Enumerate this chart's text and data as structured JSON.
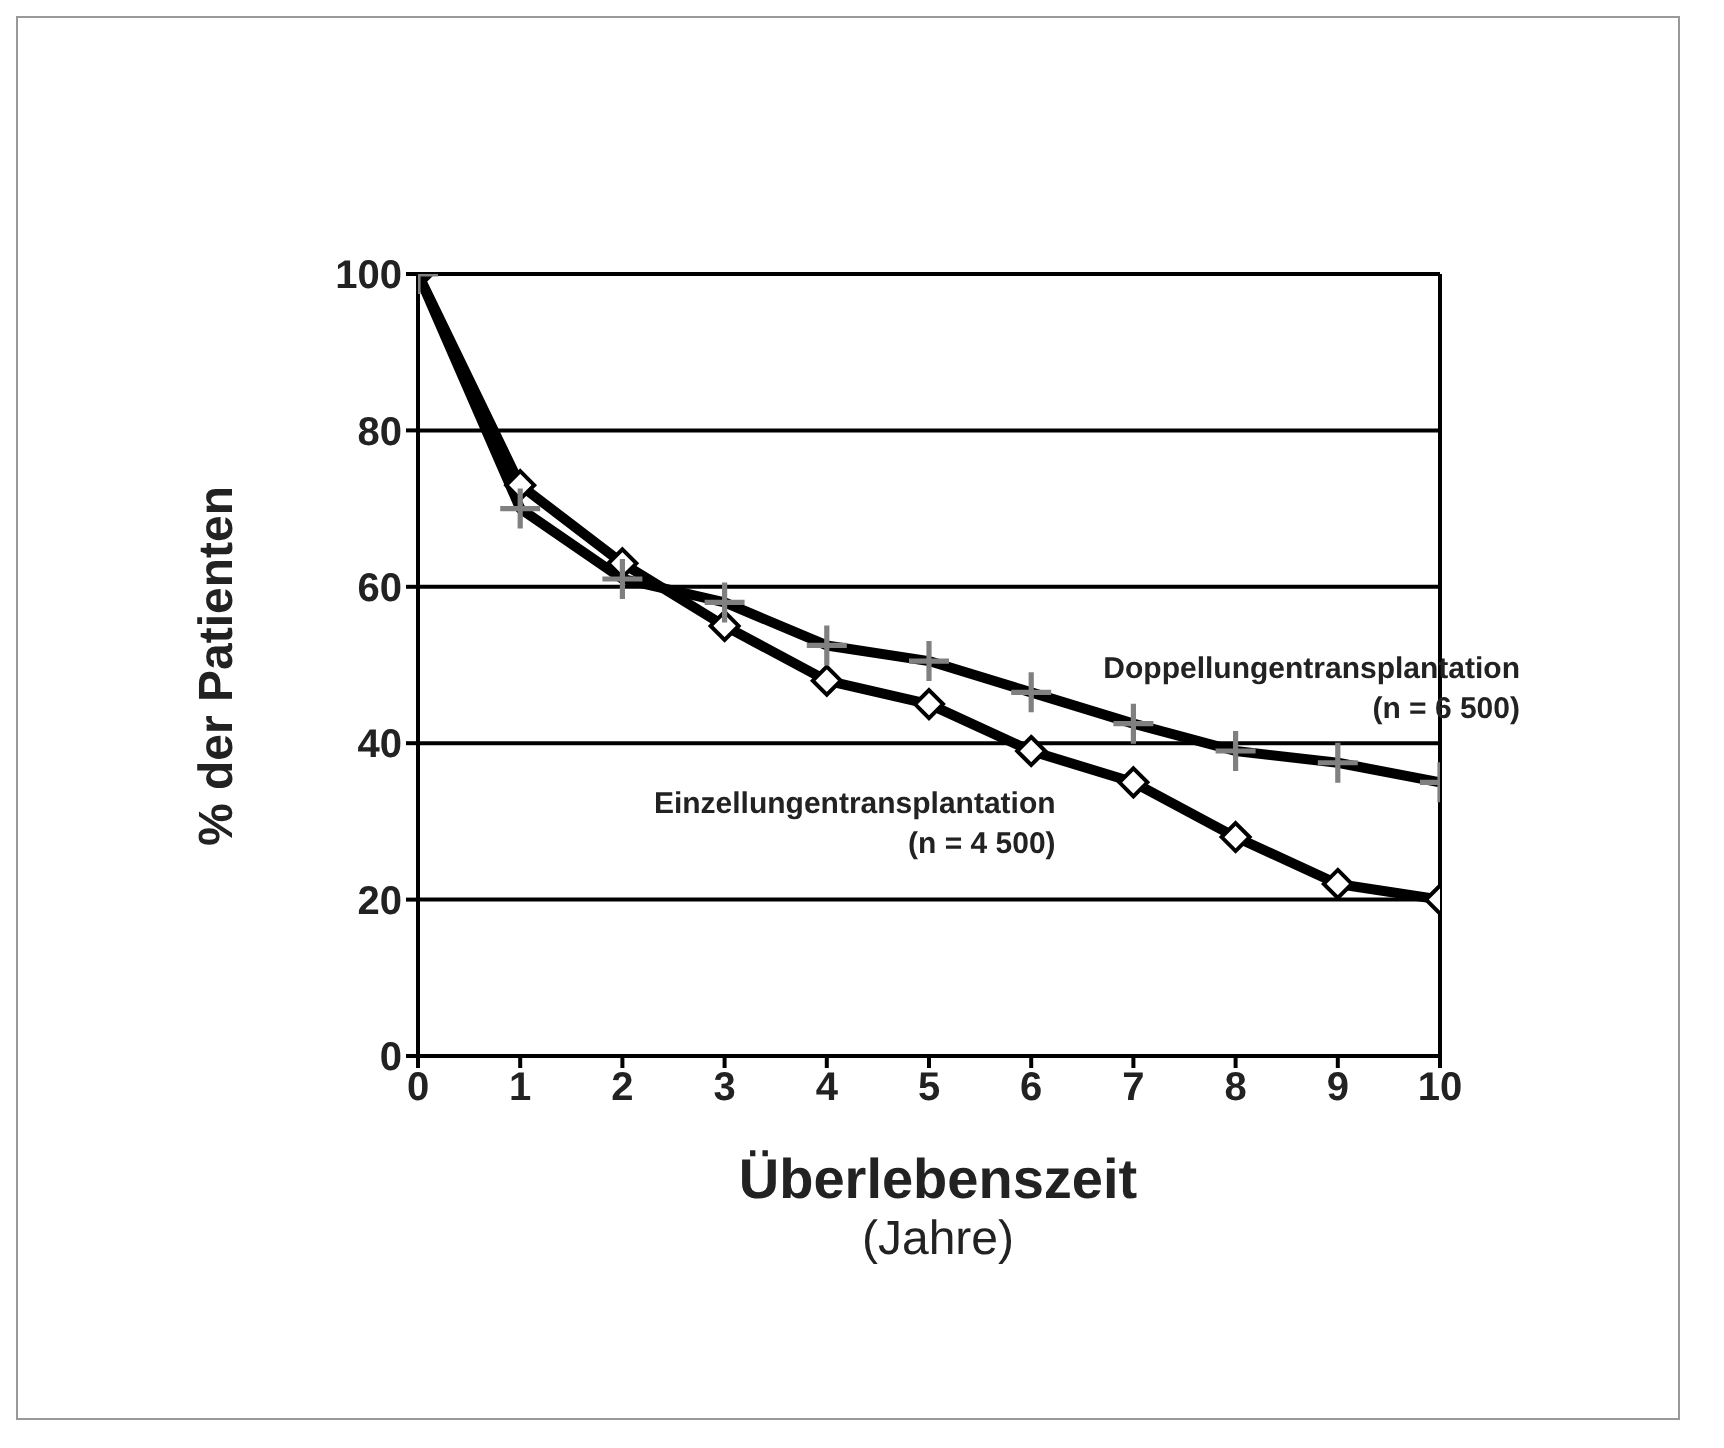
{
  "chart_data": {
    "type": "line",
    "xlabel": "Überlebenszeit",
    "subtitle": "(Jahre)",
    "ylabel": "% der Patienten",
    "x": [
      0,
      1,
      2,
      3,
      4,
      5,
      6,
      7,
      8,
      9,
      10
    ],
    "series": [
      {
        "name": "Einzellungentransplantation (n = 4 500)",
        "color": "#000000",
        "marker": "diamond",
        "values": [
          100,
          73,
          63,
          55,
          48,
          45,
          39,
          35,
          28,
          22,
          20
        ]
      },
      {
        "name": "Doppellungentransplantation (n = 6 500)",
        "color": "#000000",
        "marker": "cross",
        "values": [
          100,
          70,
          61,
          58,
          52.5,
          50.5,
          46.5,
          42.5,
          39,
          37.5,
          35
        ]
      }
    ],
    "xlim": [
      0,
      10
    ],
    "xticks": [
      0,
      1,
      2,
      3,
      4,
      5,
      6,
      7,
      8,
      9,
      10
    ],
    "ylim": [
      0,
      100
    ],
    "yticks": [
      0,
      20,
      40,
      60,
      80,
      100
    ],
    "grid": "y",
    "legend": false
  }
}
